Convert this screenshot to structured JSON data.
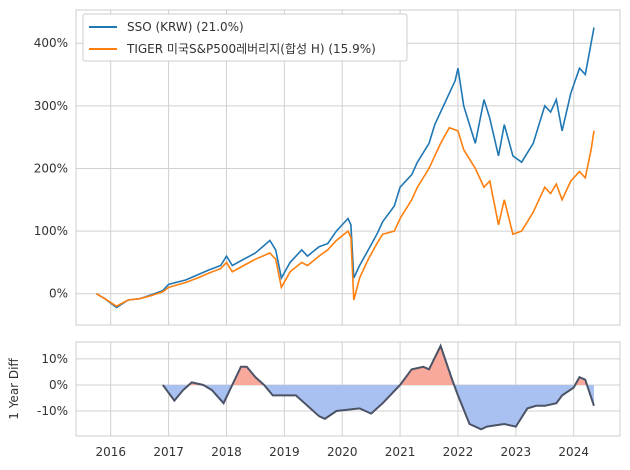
{
  "chart_data": [
    {
      "type": "line",
      "ylim": [
        -50,
        453
      ],
      "xlim": [
        2015.4,
        2024.8
      ],
      "yticks": [
        0,
        100,
        200,
        300,
        400
      ],
      "ytick_labels": [
        "0%",
        "100%",
        "200%",
        "300%",
        "400%"
      ],
      "grid": true,
      "legend": "top-left",
      "series": [
        {
          "name": "SSO (KRW)  (21.0%)",
          "color": "#1f77b4",
          "x": [
            2015.75,
            2015.9,
            2016.0,
            2016.1,
            2016.3,
            2016.5,
            2016.7,
            2016.9,
            2017.0,
            2017.3,
            2017.5,
            2017.7,
            2017.9,
            2018.0,
            2018.1,
            2018.3,
            2018.5,
            2018.75,
            2018.85,
            2018.95,
            2019.1,
            2019.3,
            2019.4,
            2019.6,
            2019.75,
            2019.9,
            2020.1,
            2020.15,
            2020.2,
            2020.3,
            2020.45,
            2020.6,
            2020.7,
            2020.9,
            2021.0,
            2021.2,
            2021.3,
            2021.5,
            2021.6,
            2021.8,
            2021.95,
            2022.0,
            2022.1,
            2022.3,
            2022.45,
            2022.55,
            2022.7,
            2022.8,
            2022.95,
            2023.1,
            2023.3,
            2023.5,
            2023.6,
            2023.7,
            2023.8,
            2023.95,
            2024.1,
            2024.2,
            2024.3,
            2024.35
          ],
          "y": [
            0,
            -8,
            -15,
            -22,
            -10,
            -8,
            -2,
            5,
            15,
            22,
            30,
            38,
            45,
            60,
            45,
            55,
            65,
            85,
            70,
            25,
            50,
            70,
            60,
            75,
            80,
            100,
            120,
            110,
            25,
            45,
            70,
            95,
            115,
            140,
            170,
            190,
            210,
            240,
            270,
            310,
            340,
            360,
            300,
            240,
            310,
            280,
            220,
            270,
            220,
            210,
            240,
            300,
            290,
            310,
            260,
            320,
            360,
            350,
            400,
            425
          ]
        },
        {
          "name": "TIGER 미국S&P500레버리지(합성 H)  (15.9%)",
          "color": "#ff7f0e",
          "x": [
            2015.75,
            2015.9,
            2016.0,
            2016.1,
            2016.3,
            2016.5,
            2016.7,
            2016.9,
            2017.0,
            2017.3,
            2017.5,
            2017.7,
            2017.9,
            2018.0,
            2018.1,
            2018.3,
            2018.5,
            2018.75,
            2018.85,
            2018.95,
            2019.1,
            2019.3,
            2019.4,
            2019.6,
            2019.75,
            2019.9,
            2020.1,
            2020.15,
            2020.2,
            2020.3,
            2020.45,
            2020.6,
            2020.7,
            2020.9,
            2021.0,
            2021.2,
            2021.3,
            2021.5,
            2021.7,
            2021.85,
            2022.0,
            2022.1,
            2022.3,
            2022.45,
            2022.55,
            2022.7,
            2022.8,
            2022.95,
            2023.1,
            2023.3,
            2023.5,
            2023.6,
            2023.7,
            2023.8,
            2023.95,
            2024.1,
            2024.2,
            2024.3,
            2024.35
          ],
          "y": [
            0,
            -8,
            -14,
            -20,
            -10,
            -8,
            -3,
            3,
            10,
            18,
            25,
            33,
            40,
            50,
            35,
            45,
            55,
            65,
            55,
            10,
            35,
            50,
            45,
            60,
            70,
            85,
            100,
            90,
            -10,
            25,
            55,
            80,
            95,
            100,
            120,
            150,
            170,
            200,
            240,
            265,
            260,
            230,
            200,
            170,
            180,
            110,
            150,
            95,
            100,
            130,
            170,
            160,
            175,
            150,
            180,
            195,
            185,
            230,
            260
          ]
        }
      ]
    },
    {
      "type": "area",
      "ylabel": "1 Year Diff",
      "ylim": [
        -19.6,
        16.5
      ],
      "xlim": [
        2015.4,
        2024.8
      ],
      "yticks": [
        10,
        0,
        -10
      ],
      "ytick_labels": [
        "10%",
        "0%",
        "-10%"
      ],
      "xticks": [
        2016,
        2017,
        2018,
        2019,
        2020,
        2021,
        2022,
        2023,
        2024
      ],
      "xtick_labels": [
        "2016",
        "2017",
        "2018",
        "2019",
        "2020",
        "2021",
        "2022",
        "2023",
        "2024"
      ],
      "grid": true,
      "colors": {
        "positive": "#f9a99b",
        "negative": "#a9c1f0",
        "line": "#4b5366"
      },
      "x": [
        2016.9,
        2017.1,
        2017.25,
        2017.4,
        2017.6,
        2017.75,
        2017.95,
        2018.1,
        2018.25,
        2018.35,
        2018.5,
        2018.65,
        2018.8,
        2019.2,
        2019.6,
        2019.7,
        2019.9,
        2020.3,
        2020.5,
        2020.7,
        2021.0,
        2021.2,
        2021.4,
        2021.5,
        2021.7,
        2021.9,
        2022.0,
        2022.2,
        2022.4,
        2022.5,
        2022.8,
        2023.0,
        2023.2,
        2023.35,
        2023.5,
        2023.7,
        2023.8,
        2024.0,
        2024.1,
        2024.2,
        2024.35
      ],
      "y": [
        0,
        -6,
        -2,
        1,
        0,
        -2,
        -7,
        0,
        7,
        7,
        3,
        0,
        -4,
        -4,
        -12,
        -13,
        -10,
        -9,
        -11,
        -7,
        0,
        6,
        7,
        6,
        15,
        2,
        -4,
        -15,
        -17,
        -16,
        -15,
        -16,
        -9,
        -8,
        -8,
        -7,
        -4,
        -1,
        3,
        2,
        -8
      ]
    }
  ]
}
